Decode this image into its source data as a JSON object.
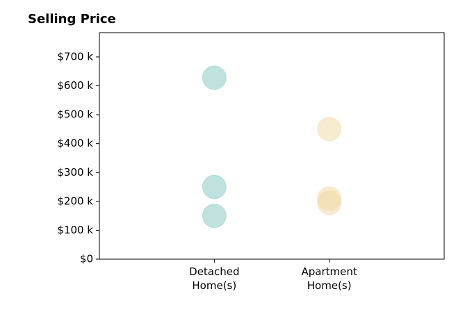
{
  "chart_data": {
    "type": "strip",
    "title": "Selling Price",
    "categories": [
      "Detached\nHome(s)",
      "Apartment\nHome(s)"
    ],
    "values": [
      [
        628000,
        250000,
        150000
      ],
      [
        450000,
        210000,
        195000
      ]
    ],
    "colors": [
      "#80c6bf",
      "#f0d8a0"
    ],
    "ylim": [
      0,
      784000
    ],
    "yticks": [
      {
        "value": 0,
        "label": "$0"
      },
      {
        "value": 100000,
        "label": "$100 k"
      },
      {
        "value": 200000,
        "label": "$200 k"
      },
      {
        "value": 300000,
        "label": "$300 k"
      },
      {
        "value": 400000,
        "label": "$400 k"
      },
      {
        "value": 500000,
        "label": "$500 k"
      },
      {
        "value": 600000,
        "label": "$600 k"
      },
      {
        "value": 700000,
        "label": "$700 k"
      }
    ],
    "grid": false
  }
}
